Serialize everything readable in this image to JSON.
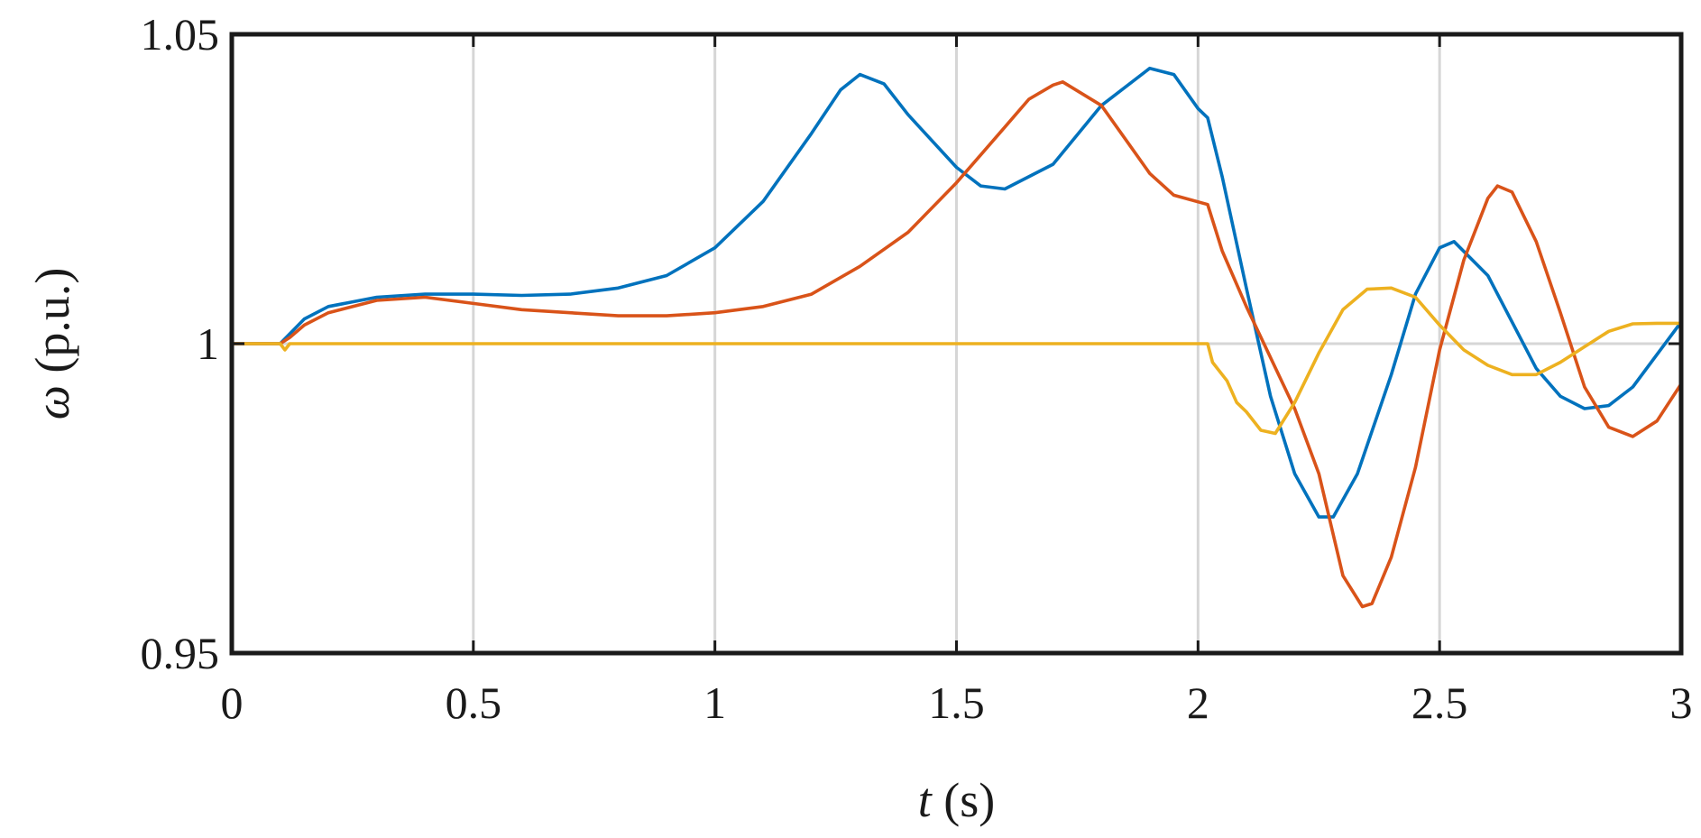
{
  "chart_data": {
    "type": "line",
    "title": "",
    "xlabel": {
      "symbol": "t",
      "unit": "(s)"
    },
    "ylabel": {
      "symbol": "ω",
      "unit": "(p.u.)"
    },
    "xlim": [
      0,
      3
    ],
    "ylim": [
      0.95,
      1.05
    ],
    "x_ticks": [
      0,
      0.5,
      1,
      1.5,
      2,
      2.5,
      3
    ],
    "x_tick_labels": [
      "0",
      "0.5",
      "1",
      "1.5",
      "2",
      "2.5",
      "3"
    ],
    "y_ticks": [
      0.95,
      1,
      1.05
    ],
    "y_tick_labels": [
      "0.95",
      "1",
      "1.05"
    ],
    "grid": true,
    "legend": "none",
    "series": [
      {
        "color": "#0072BD",
        "points": [
          [
            0,
            1.0
          ],
          [
            0.1,
            1.0
          ],
          [
            0.15,
            1.004
          ],
          [
            0.2,
            1.006
          ],
          [
            0.3,
            1.0075
          ],
          [
            0.4,
            1.008
          ],
          [
            0.5,
            1.008
          ],
          [
            0.6,
            1.0078
          ],
          [
            0.7,
            1.008
          ],
          [
            0.8,
            1.009
          ],
          [
            0.9,
            1.011
          ],
          [
            1.0,
            1.0155
          ],
          [
            1.1,
            1.023
          ],
          [
            1.2,
            1.034
          ],
          [
            1.26,
            1.041
          ],
          [
            1.3,
            1.0435
          ],
          [
            1.35,
            1.042
          ],
          [
            1.4,
            1.037
          ],
          [
            1.5,
            1.0285
          ],
          [
            1.55,
            1.0255
          ],
          [
            1.6,
            1.025
          ],
          [
            1.7,
            1.029
          ],
          [
            1.8,
            1.0385
          ],
          [
            1.9,
            1.0445
          ],
          [
            1.95,
            1.0435
          ],
          [
            2.0,
            1.038
          ],
          [
            2.02,
            1.0365
          ],
          [
            2.05,
            1.027
          ],
          [
            2.1,
            1.009
          ],
          [
            2.15,
            0.9915
          ],
          [
            2.2,
            0.979
          ],
          [
            2.25,
            0.972
          ],
          [
            2.28,
            0.972
          ],
          [
            2.33,
            0.979
          ],
          [
            2.4,
            0.995
          ],
          [
            2.45,
            1.008
          ],
          [
            2.5,
            1.0155
          ],
          [
            2.53,
            1.0165
          ],
          [
            2.6,
            1.011
          ],
          [
            2.7,
            0.996
          ],
          [
            2.75,
            0.9915
          ],
          [
            2.8,
            0.9895
          ],
          [
            2.85,
            0.99
          ],
          [
            2.9,
            0.993
          ],
          [
            3.0,
            1.0035
          ]
        ]
      },
      {
        "color": "#D95319",
        "points": [
          [
            0,
            1.0
          ],
          [
            0.1,
            1.0
          ],
          [
            0.12,
            1.001
          ],
          [
            0.15,
            1.003
          ],
          [
            0.2,
            1.005
          ],
          [
            0.3,
            1.007
          ],
          [
            0.4,
            1.0075
          ],
          [
            0.5,
            1.0065
          ],
          [
            0.6,
            1.0055
          ],
          [
            0.7,
            1.005
          ],
          [
            0.8,
            1.0045
          ],
          [
            0.9,
            1.0045
          ],
          [
            1.0,
            1.005
          ],
          [
            1.1,
            1.006
          ],
          [
            1.2,
            1.008
          ],
          [
            1.3,
            1.0125
          ],
          [
            1.4,
            1.018
          ],
          [
            1.5,
            1.026
          ],
          [
            1.55,
            1.0305
          ],
          [
            1.6,
            1.035
          ],
          [
            1.65,
            1.0395
          ],
          [
            1.7,
            1.0418
          ],
          [
            1.72,
            1.0423
          ],
          [
            1.8,
            1.0385
          ],
          [
            1.85,
            1.033
          ],
          [
            1.9,
            1.0275
          ],
          [
            1.95,
            1.024
          ],
          [
            2.02,
            1.0225
          ],
          [
            2.05,
            1.015
          ],
          [
            2.1,
            1.006
          ],
          [
            2.2,
            0.9895
          ],
          [
            2.25,
            0.979
          ],
          [
            2.3,
            0.9625
          ],
          [
            2.34,
            0.9575
          ],
          [
            2.36,
            0.958
          ],
          [
            2.4,
            0.9655
          ],
          [
            2.45,
            0.98
          ],
          [
            2.5,
            0.999
          ],
          [
            2.55,
            1.0135
          ],
          [
            2.6,
            1.0235
          ],
          [
            2.62,
            1.0255
          ],
          [
            2.65,
            1.0245
          ],
          [
            2.7,
            1.0165
          ],
          [
            2.75,
            1.005
          ],
          [
            2.8,
            0.993
          ],
          [
            2.85,
            0.9865
          ],
          [
            2.9,
            0.985
          ],
          [
            2.95,
            0.9875
          ],
          [
            3.0,
            0.9935
          ]
        ]
      },
      {
        "color": "#EDB120",
        "points": [
          [
            0,
            1.0
          ],
          [
            0.1,
            1.0
          ],
          [
            0.11,
            0.999
          ],
          [
            0.12,
            1.0
          ],
          [
            0.2,
            1.0
          ],
          [
            1.0,
            1.0
          ],
          [
            2.0,
            1.0
          ],
          [
            2.02,
            1.0
          ],
          [
            2.03,
            0.997
          ],
          [
            2.06,
            0.994
          ],
          [
            2.08,
            0.9905
          ],
          [
            2.1,
            0.989
          ],
          [
            2.13,
            0.986
          ],
          [
            2.16,
            0.9855
          ],
          [
            2.2,
            0.9905
          ],
          [
            2.25,
            0.9985
          ],
          [
            2.3,
            1.0055
          ],
          [
            2.35,
            1.0088
          ],
          [
            2.4,
            1.009
          ],
          [
            2.45,
            1.0075
          ],
          [
            2.5,
            1.003
          ],
          [
            2.55,
            0.999
          ],
          [
            2.6,
            0.9965
          ],
          [
            2.65,
            0.995
          ],
          [
            2.7,
            0.995
          ],
          [
            2.75,
            0.997
          ],
          [
            2.8,
            0.9995
          ],
          [
            2.85,
            1.002
          ],
          [
            2.9,
            1.0032
          ],
          [
            2.95,
            1.0033
          ],
          [
            3.0,
            1.0033
          ]
        ]
      }
    ]
  }
}
